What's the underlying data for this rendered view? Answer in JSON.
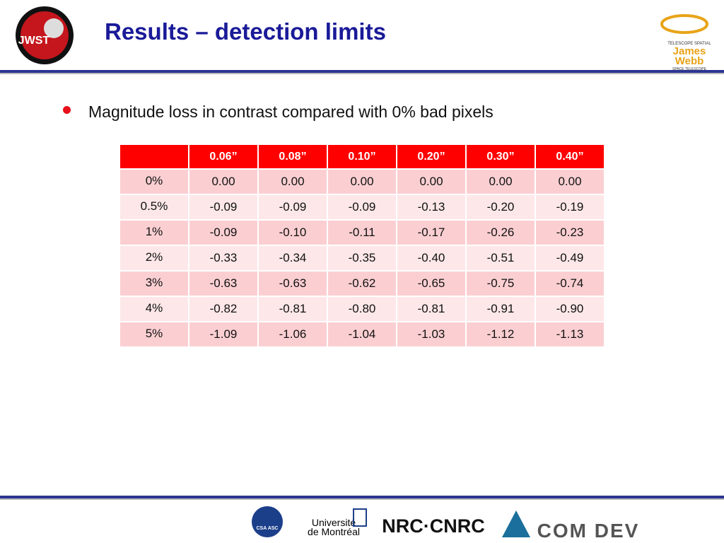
{
  "header": {
    "title": "Results – detection limits"
  },
  "bullet": "Magnitude loss in contrast compared with 0% bad pixels",
  "table": {
    "columns": [
      "",
      "0.06”",
      "0.08”",
      "0.10”",
      "0.20”",
      "0.30”",
      "0.40”"
    ],
    "rows": [
      [
        "0%",
        "0.00",
        "0.00",
        "0.00",
        "0.00",
        "0.00",
        "0.00"
      ],
      [
        "0.5%",
        "-0.09",
        "-0.09",
        "-0.09",
        "-0.13",
        "-0.20",
        "-0.19"
      ],
      [
        "1%",
        "-0.09",
        "-0.10",
        "-0.11",
        "-0.17",
        "-0.26",
        "-0.23"
      ],
      [
        "2%",
        "-0.33",
        "-0.34",
        "-0.35",
        "-0.40",
        "-0.51",
        "-0.49"
      ],
      [
        "3%",
        "-0.63",
        "-0.63",
        "-0.62",
        "-0.65",
        "-0.75",
        "-0.74"
      ],
      [
        "4%",
        "-0.82",
        "-0.81",
        "-0.80",
        "-0.81",
        "-0.91",
        "-0.90"
      ],
      [
        "5%",
        "-1.09",
        "-1.06",
        "-1.04",
        "-1.03",
        "-1.12",
        "-1.13"
      ]
    ]
  },
  "logos": {
    "jwst": "JWST",
    "jwst_top_right": [
      "TELESCOPE SPATIAL",
      "James",
      "Webb",
      "SPACE TELESCOPE"
    ],
    "csa": "CSA ASC",
    "udem": [
      "Université",
      "de Montréal"
    ],
    "nrc": "NRC·CNRC",
    "comdev": "COM DEV"
  }
}
